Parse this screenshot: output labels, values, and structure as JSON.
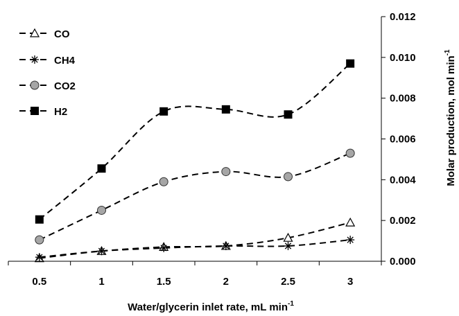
{
  "chart_data": {
    "type": "line",
    "title": "",
    "xlabel": "Water/glycerin inlet rate, mL min",
    "xlabel_superscript": "-1",
    "ylabel": "Molar production, mol min",
    "ylabel_superscript": "-1",
    "x": [
      0.5,
      1,
      1.5,
      2,
      2.5,
      3
    ],
    "x_tick_labels": [
      "0.5",
      "1",
      "1.5",
      "2",
      "2.5",
      "3"
    ],
    "xlim": [
      0.25,
      3.25
    ],
    "ylim": [
      0,
      0.012
    ],
    "y_ticks": [
      0,
      0.002,
      0.004,
      0.006,
      0.008,
      0.01,
      0.012
    ],
    "y_tick_labels": [
      "0.000",
      "0.002",
      "0.004",
      "0.006",
      "0.008",
      "0.010",
      "0.012"
    ],
    "y_axis_side": "right",
    "grid": false,
    "legend_position": "top-left",
    "line_style": "dashed, smoothed",
    "series": [
      {
        "name": "CO",
        "marker": "triangle-open",
        "values": [
          0.00015,
          0.0005,
          0.0007,
          0.00075,
          0.00115,
          0.0019
        ]
      },
      {
        "name": "CH4",
        "marker": "asterisk",
        "values": [
          0.0002,
          0.0005,
          0.00065,
          0.00075,
          0.00075,
          0.00105
        ]
      },
      {
        "name": "CO2",
        "marker": "circle-gray",
        "values": [
          0.00105,
          0.0025,
          0.0039,
          0.0044,
          0.00415,
          0.0053
        ]
      },
      {
        "name": "H2",
        "marker": "square-black",
        "values": [
          0.00205,
          0.00455,
          0.00735,
          0.00745,
          0.0072,
          0.0097
        ]
      }
    ],
    "colors": {
      "line": "#000000",
      "circle_fill": "#a6a6a6",
      "marker_stroke": "#000000"
    }
  }
}
